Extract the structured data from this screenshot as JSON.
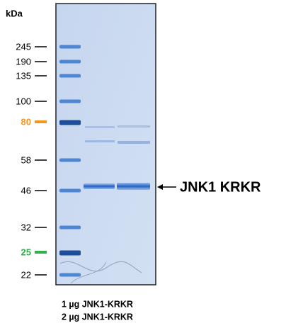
{
  "unit": "kDa",
  "markers": [
    {
      "label": "245",
      "color": "#000000"
    },
    {
      "label": "190",
      "color": "#000000"
    },
    {
      "label": "135",
      "color": "#000000"
    },
    {
      "label": "100",
      "color": "#000000"
    },
    {
      "label": "80",
      "color": "#f7941d"
    },
    {
      "label": "58",
      "color": "#000000"
    },
    {
      "label": "46",
      "color": "#000000"
    },
    {
      "label": "32",
      "color": "#000000"
    },
    {
      "label": "25",
      "color": "#2db34a"
    },
    {
      "label": "22",
      "color": "#000000"
    }
  ],
  "band_label": "JNK1 KRKR",
  "lanes": [
    "1 µg JNK1-KRKR",
    "2 µg JNK1-KRKR"
  ]
}
